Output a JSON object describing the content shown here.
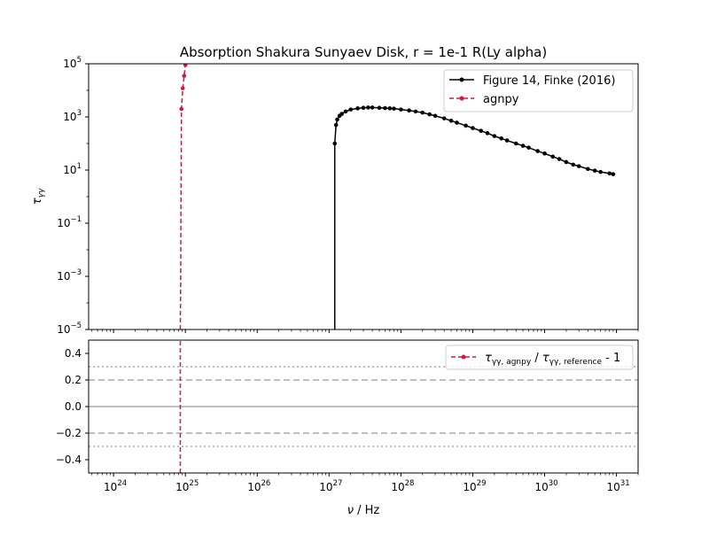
{
  "chart_data": [
    {
      "panel": "top",
      "type": "line",
      "title": "Absorption Shakura Sunyaev Disk, r = 1e-1 R(Ly alpha)",
      "ylabel": "τ_γγ",
      "yscale": "log",
      "xscale": "log",
      "xlim": [
        4.5e+23,
        2e+31
      ],
      "ylim": [
        1e-05,
        100000.0
      ],
      "yticks": [
        1e-05,
        0.001,
        0.1,
        10.0,
        1000.0,
        100000.0
      ],
      "ytick_labels": [
        {
          "base": "10",
          "exp": "−5"
        },
        {
          "base": "10",
          "exp": "−3"
        },
        {
          "base": "10",
          "exp": "−1"
        },
        {
          "base": "10",
          "exp": "1"
        },
        {
          "base": "10",
          "exp": "3"
        },
        {
          "base": "10",
          "exp": "5"
        }
      ],
      "legend_position": "top-right",
      "series": [
        {
          "name": "Figure 14, Finke (2016)",
          "color": "#000000",
          "style": "solid",
          "marker": "dot",
          "x": [
            1.2e+27,
            1.2e+27,
            1.25e+27,
            1.3e+27,
            1.4e+27,
            1.5e+27,
            1.7e+27,
            2e+27,
            2.5e+27,
            3e+27,
            3.5e+27,
            4e+27,
            5e+27,
            6e+27,
            7e+27,
            8e+27,
            1e+28,
            1.3e+28,
            1.6e+28,
            2e+28,
            2.5e+28,
            3e+28,
            4e+28,
            5e+28,
            6e+28,
            8e+28,
            1e+29,
            1.3e+29,
            1.6e+29,
            2e+29,
            2.5e+29,
            3e+29,
            4e+29,
            5e+29,
            6e+29,
            8e+29,
            1e+30,
            1.3e+30,
            1.6e+30,
            2e+30,
            2.5e+30,
            3e+30,
            4e+30,
            5e+30,
            6e+30,
            8e+30,
            9e+30
          ],
          "y": [
            1e-05,
            100,
            500,
            800,
            1100,
            1300,
            1600,
            1900,
            2100,
            2200,
            2250,
            2250,
            2200,
            2150,
            2100,
            2050,
            1900,
            1750,
            1600,
            1450,
            1250,
            1100,
            880,
            720,
            610,
            470,
            380,
            300,
            245,
            190,
            155,
            130,
            100,
            82,
            70,
            52,
            42,
            32,
            26,
            20,
            16,
            14,
            11,
            9.5,
            8.5,
            7.5,
            7.0
          ]
        },
        {
          "name": "agnpy",
          "color": "#dc143c",
          "style": "dashed",
          "marker": "dot",
          "x": [
            8.5e+24,
            8.6e+24,
            8.8e+24,
            9.2e+24,
            9.6e+24,
            1e+25
          ],
          "y": [
            1e-05,
            0.001,
            2000,
            12000,
            35000,
            90000
          ],
          "marker_x": [
            8.8e+24,
            9.2e+24,
            9.6e+24,
            1e+25
          ],
          "marker_y": [
            2000,
            12000,
            35000,
            90000
          ]
        }
      ]
    },
    {
      "panel": "bottom",
      "type": "line",
      "xlabel": "ν / Hz",
      "xscale": "log",
      "xlim": [
        4.5e+23,
        2e+31
      ],
      "ylim": [
        -0.5,
        0.5
      ],
      "yticks": [
        0.4,
        0.2,
        0.0,
        -0.2,
        -0.4
      ],
      "ytick_labels": [
        "0.4",
        "0.2",
        "0.0",
        "−0.2",
        "−0.4"
      ],
      "xticks": [
        1e+24,
        1e+25,
        1e+26,
        1e+27,
        1e+28,
        1e+29,
        1e+30,
        1e+31
      ],
      "xtick_labels": [
        {
          "base": "10",
          "exp": "24"
        },
        {
          "base": "10",
          "exp": "25"
        },
        {
          "base": "10",
          "exp": "26"
        },
        {
          "base": "10",
          "exp": "27"
        },
        {
          "base": "10",
          "exp": "28"
        },
        {
          "base": "10",
          "exp": "29"
        },
        {
          "base": "10",
          "exp": "30"
        },
        {
          "base": "10",
          "exp": "31"
        }
      ],
      "reference_lines": [
        {
          "y": 0.0,
          "style": "solid",
          "color": "#aaaaaa"
        },
        {
          "y": 0.2,
          "style": "dashed",
          "color": "#aaaaaa"
        },
        {
          "y": -0.2,
          "style": "dashed",
          "color": "#aaaaaa"
        },
        {
          "y": 0.3,
          "style": "dotted",
          "color": "#aaaaaa"
        },
        {
          "y": -0.3,
          "style": "dotted",
          "color": "#aaaaaa"
        }
      ],
      "legend_position": "top-right",
      "series": [
        {
          "name": "τ_γγ,agnpy / τ_γγ,reference - 1",
          "color": "#dc143c",
          "style": "dashed",
          "marker": "dot",
          "x": [
            8.5e+24,
            8.5e+24
          ],
          "y": [
            -0.5,
            0.5
          ]
        }
      ]
    }
  ],
  "text": {
    "title": "Absorption Shakura Sunyaev Disk, r = 1e-1 R(Ly alpha)",
    "legend_top_1": "Figure 14, Finke (2016)",
    "legend_top_2": "agnpy",
    "legend_bottom_tau": "τ",
    "legend_bottom_sub1": "γγ, agnpy",
    "legend_bottom_slash": " / ",
    "legend_bottom_sub2": "γγ, reference",
    "legend_bottom_tail": " - 1",
    "ylabel_tau": "τ",
    "ylabel_sub": "γγ",
    "xlabel_nu": "ν",
    "xlabel_rest": " / Hz"
  }
}
